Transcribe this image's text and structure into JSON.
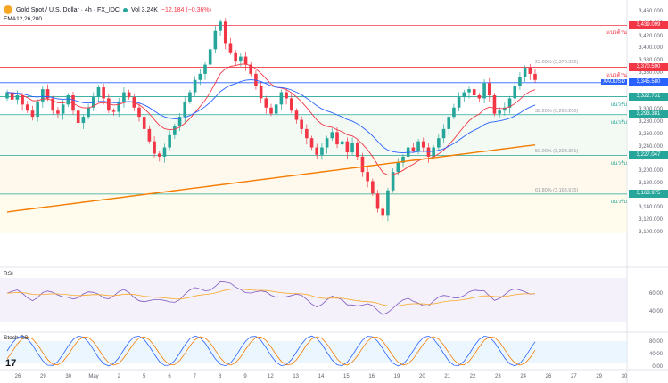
{
  "header": {
    "symbol": "Gold Spot / U.S. Dollar · 4h · FX_IDC",
    "volume": "Vol 3.24K",
    "change": "−12.184 (−0.36%)",
    "indicator": "EMA12,26,200"
  },
  "price_axis": {
    "ticks": [
      "3,460.000",
      "3,440.000",
      "3,420.000",
      "3,400.000",
      "3,380.000",
      "3,360.000",
      "3,340.000",
      "3,320.000",
      "3,300.000",
      "3,280.000",
      "3,260.000",
      "3,240.000",
      "3,220.000",
      "3,200.000",
      "3,180.000",
      "3,160.000",
      "3,140.000",
      "3,120.000",
      "3,100.000"
    ]
  },
  "levels": [
    {
      "value": "3,439.099",
      "label": "แนวต้าน",
      "color": "#f23645",
      "price": 3439.1
    },
    {
      "value": "3,370.590",
      "label": "แนวต้าน",
      "color": "#f23645",
      "price": 3370.6
    },
    {
      "value": "3,345.580",
      "label": "XAUUSD",
      "color": "#2962ff",
      "price": 3345.6
    },
    {
      "value": "3,322.731",
      "label": "แนวรับ",
      "color": "#26a69a",
      "price": 3322.7
    },
    {
      "value": "3,293.381",
      "label": "แนวรับ",
      "color": "#26a69a",
      "price": 3293.4
    },
    {
      "value": "3,227.047",
      "label": "แนวรับ",
      "color": "#26a69a",
      "price": 3227.0
    },
    {
      "value": "3,163.975",
      "label": "แนวรับ",
      "color": "#26a69a",
      "price": 3164.0
    }
  ],
  "fib_labels": [
    {
      "text": "23.60% (3,373.362)",
      "price": 3373.4
    },
    {
      "text": "38.20% (3,293.200)",
      "price": 3293.2
    },
    {
      "text": "50.00% (3,228.391)",
      "price": 3228.4
    },
    {
      "text": "61.80% (3,163.975)",
      "price": 3164.0
    }
  ],
  "rsi": {
    "label": "RSI",
    "ticks": [
      "60.00",
      "40.00"
    ]
  },
  "stoch": {
    "label": "Stoch RSI",
    "ticks": [
      "80.00",
      "40.00",
      "0.00"
    ]
  },
  "x_axis": [
    "26",
    "29",
    "30",
    "May",
    "2",
    "5",
    "6",
    "7",
    "8",
    "9",
    "12",
    "13",
    "14",
    "15",
    "16",
    "19",
    "20",
    "21",
    "22",
    "23",
    "24",
    "26",
    "27",
    "29",
    "30"
  ],
  "logo": "17",
  "colors": {
    "up": "#26a69a",
    "down": "#f23645",
    "ema12": "#f23645",
    "ema26": "#2962ff",
    "ema200": "#f57c00"
  }
}
